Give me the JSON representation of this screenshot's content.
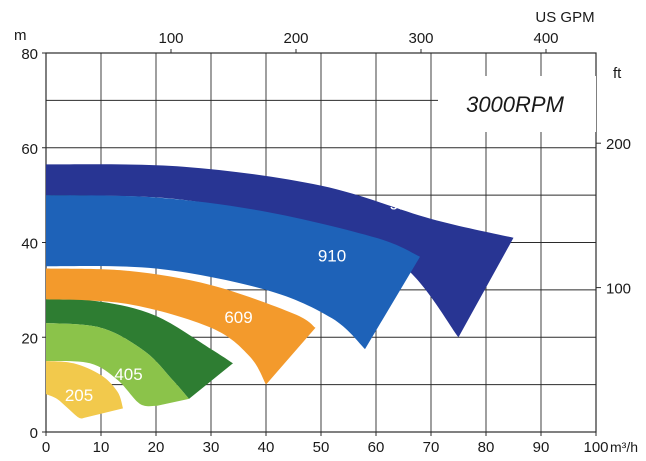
{
  "chart_data": {
    "type": "area",
    "speed_label": "3000RPM",
    "left_axis": {
      "unit": "m",
      "range": [
        0,
        80
      ],
      "ticks": [
        0,
        20,
        40,
        60,
        80
      ]
    },
    "bottom_axis": {
      "unit": "m³/h",
      "range": [
        0,
        100
      ],
      "ticks": [
        0,
        10,
        20,
        30,
        40,
        50,
        60,
        70,
        80,
        90,
        100
      ]
    },
    "top_axis": {
      "unit": "US GPM",
      "ticks": [
        100,
        200,
        300,
        400
      ]
    },
    "right_axis": {
      "unit": "ft",
      "ticks": [
        100,
        200
      ]
    },
    "grid": true,
    "series": [
      {
        "name": "915",
        "color": "#283593",
        "upper": [
          [
            0,
            56.5
          ],
          [
            25,
            56
          ],
          [
            50,
            52
          ],
          [
            70,
            45
          ],
          [
            85,
            41
          ]
        ],
        "lower": [
          [
            0,
            50
          ],
          [
            25,
            49
          ],
          [
            50,
            43
          ],
          [
            65,
            35
          ],
          [
            75,
            20
          ]
        ]
      },
      {
        "name": "910",
        "color": "#1e62b8",
        "upper": [
          [
            0,
            50
          ],
          [
            20,
            49.5
          ],
          [
            40,
            46.5
          ],
          [
            60,
            41
          ],
          [
            68,
            37
          ]
        ],
        "lower": [
          [
            0,
            35
          ],
          [
            20,
            34.5
          ],
          [
            40,
            30
          ],
          [
            52,
            24
          ],
          [
            58,
            17.5
          ]
        ]
      },
      {
        "name": "609",
        "color": "#f39a2c",
        "upper": [
          [
            0,
            34.5
          ],
          [
            15,
            34
          ],
          [
            30,
            31
          ],
          [
            45,
            25
          ],
          [
            49,
            22
          ]
        ],
        "lower": [
          [
            0,
            28
          ],
          [
            15,
            27
          ],
          [
            30,
            22
          ],
          [
            37,
            16
          ],
          [
            40,
            10
          ]
        ]
      },
      {
        "name": "?",
        "color": "#2e7d32",
        "upper": [
          [
            0,
            28
          ],
          [
            10,
            27.5
          ],
          [
            20,
            24.5
          ],
          [
            30,
            17.5
          ],
          [
            34,
            14.5
          ]
        ],
        "lower": [
          [
            0,
            23
          ],
          [
            10,
            22
          ],
          [
            18,
            17
          ],
          [
            23,
            11
          ],
          [
            26,
            7
          ]
        ]
      },
      {
        "name": "405",
        "color": "#8bc34a",
        "upper": [
          [
            0,
            23
          ],
          [
            10,
            22
          ],
          [
            18,
            17
          ],
          [
            23,
            11
          ],
          [
            26,
            7
          ]
        ],
        "lower": [
          [
            0,
            15
          ],
          [
            8,
            14.5
          ],
          [
            13,
            11
          ],
          [
            17,
            6
          ],
          [
            20,
            5.5
          ]
        ]
      },
      {
        "name": "205",
        "color": "#f2c94c",
        "upper": [
          [
            0,
            15
          ],
          [
            5,
            14.5
          ],
          [
            10,
            12
          ],
          [
            13,
            8.5
          ],
          [
            14,
            5
          ]
        ],
        "lower": [
          [
            0,
            8
          ],
          [
            2,
            7
          ],
          [
            4,
            5
          ],
          [
            6,
            3
          ],
          [
            7,
            3
          ]
        ]
      }
    ]
  }
}
